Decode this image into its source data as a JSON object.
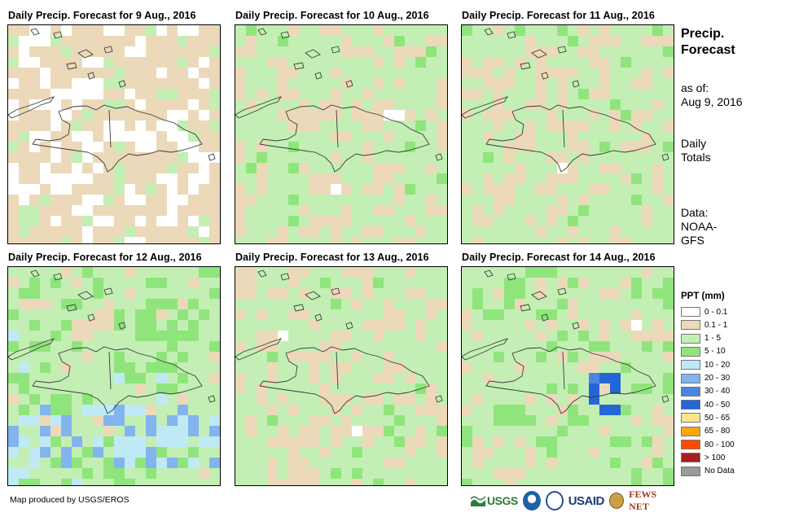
{
  "panels": [
    {
      "title": "Daily Precip. Forecast for 9 Aug., 2016",
      "seed": 11,
      "bias": "dry"
    },
    {
      "title": "Daily Precip. Forecast for 10 Aug., 2016",
      "seed": 23,
      "bias": "moist"
    },
    {
      "title": "Daily Precip. Forecast for 11 Aug., 2016",
      "seed": 37,
      "bias": "moist"
    },
    {
      "title": "Daily Precip. Forecast for 12 Aug., 2016",
      "seed": 41,
      "bias": "wet"
    },
    {
      "title": "Daily Precip. Forecast for 13 Aug., 2016",
      "seed": 53,
      "bias": "moist"
    },
    {
      "title": "Daily Precip. Forecast for 14 Aug., 2016",
      "seed": 67,
      "bias": "heavy"
    }
  ],
  "sidebar": {
    "title_line1": "Precip.",
    "title_line2": "Forecast",
    "asof_label": "as of:",
    "asof_date": "Aug 9, 2016",
    "totals_line1": "Daily",
    "totals_line2": "Totals",
    "data_line1": "Data:",
    "data_line2": "NOAA-",
    "data_line3": "GFS"
  },
  "legend": {
    "title": "PPT (mm)",
    "items": [
      {
        "label": "0 - 0.1",
        "color": "#ffffff"
      },
      {
        "label": "0.1 - 1",
        "color": "#ecd9b9"
      },
      {
        "label": "1 - 5",
        "color": "#c3efb4"
      },
      {
        "label": "5 - 10",
        "color": "#8fe57c"
      },
      {
        "label": "10 - 20",
        "color": "#bfeaf5"
      },
      {
        "label": "20 - 30",
        "color": "#82b4ee"
      },
      {
        "label": "30 - 40",
        "color": "#4a86e0"
      },
      {
        "label": "40 - 50",
        "color": "#2466d6"
      },
      {
        "label": "50 - 65",
        "color": "#ffe58a"
      },
      {
        "label": "65 - 80",
        "color": "#ffa600"
      },
      {
        "label": "80 - 100",
        "color": "#ff4a00"
      },
      {
        "label": "> 100",
        "color": "#a61f1f"
      },
      {
        "label": "No Data",
        "color": "#9a9a9a"
      }
    ]
  },
  "footer": {
    "credit": "Map produced by USGS/EROS",
    "logo_usgs": "USGS",
    "logo_usaid": "USAID",
    "logo_fews": "FEWS NET"
  }
}
